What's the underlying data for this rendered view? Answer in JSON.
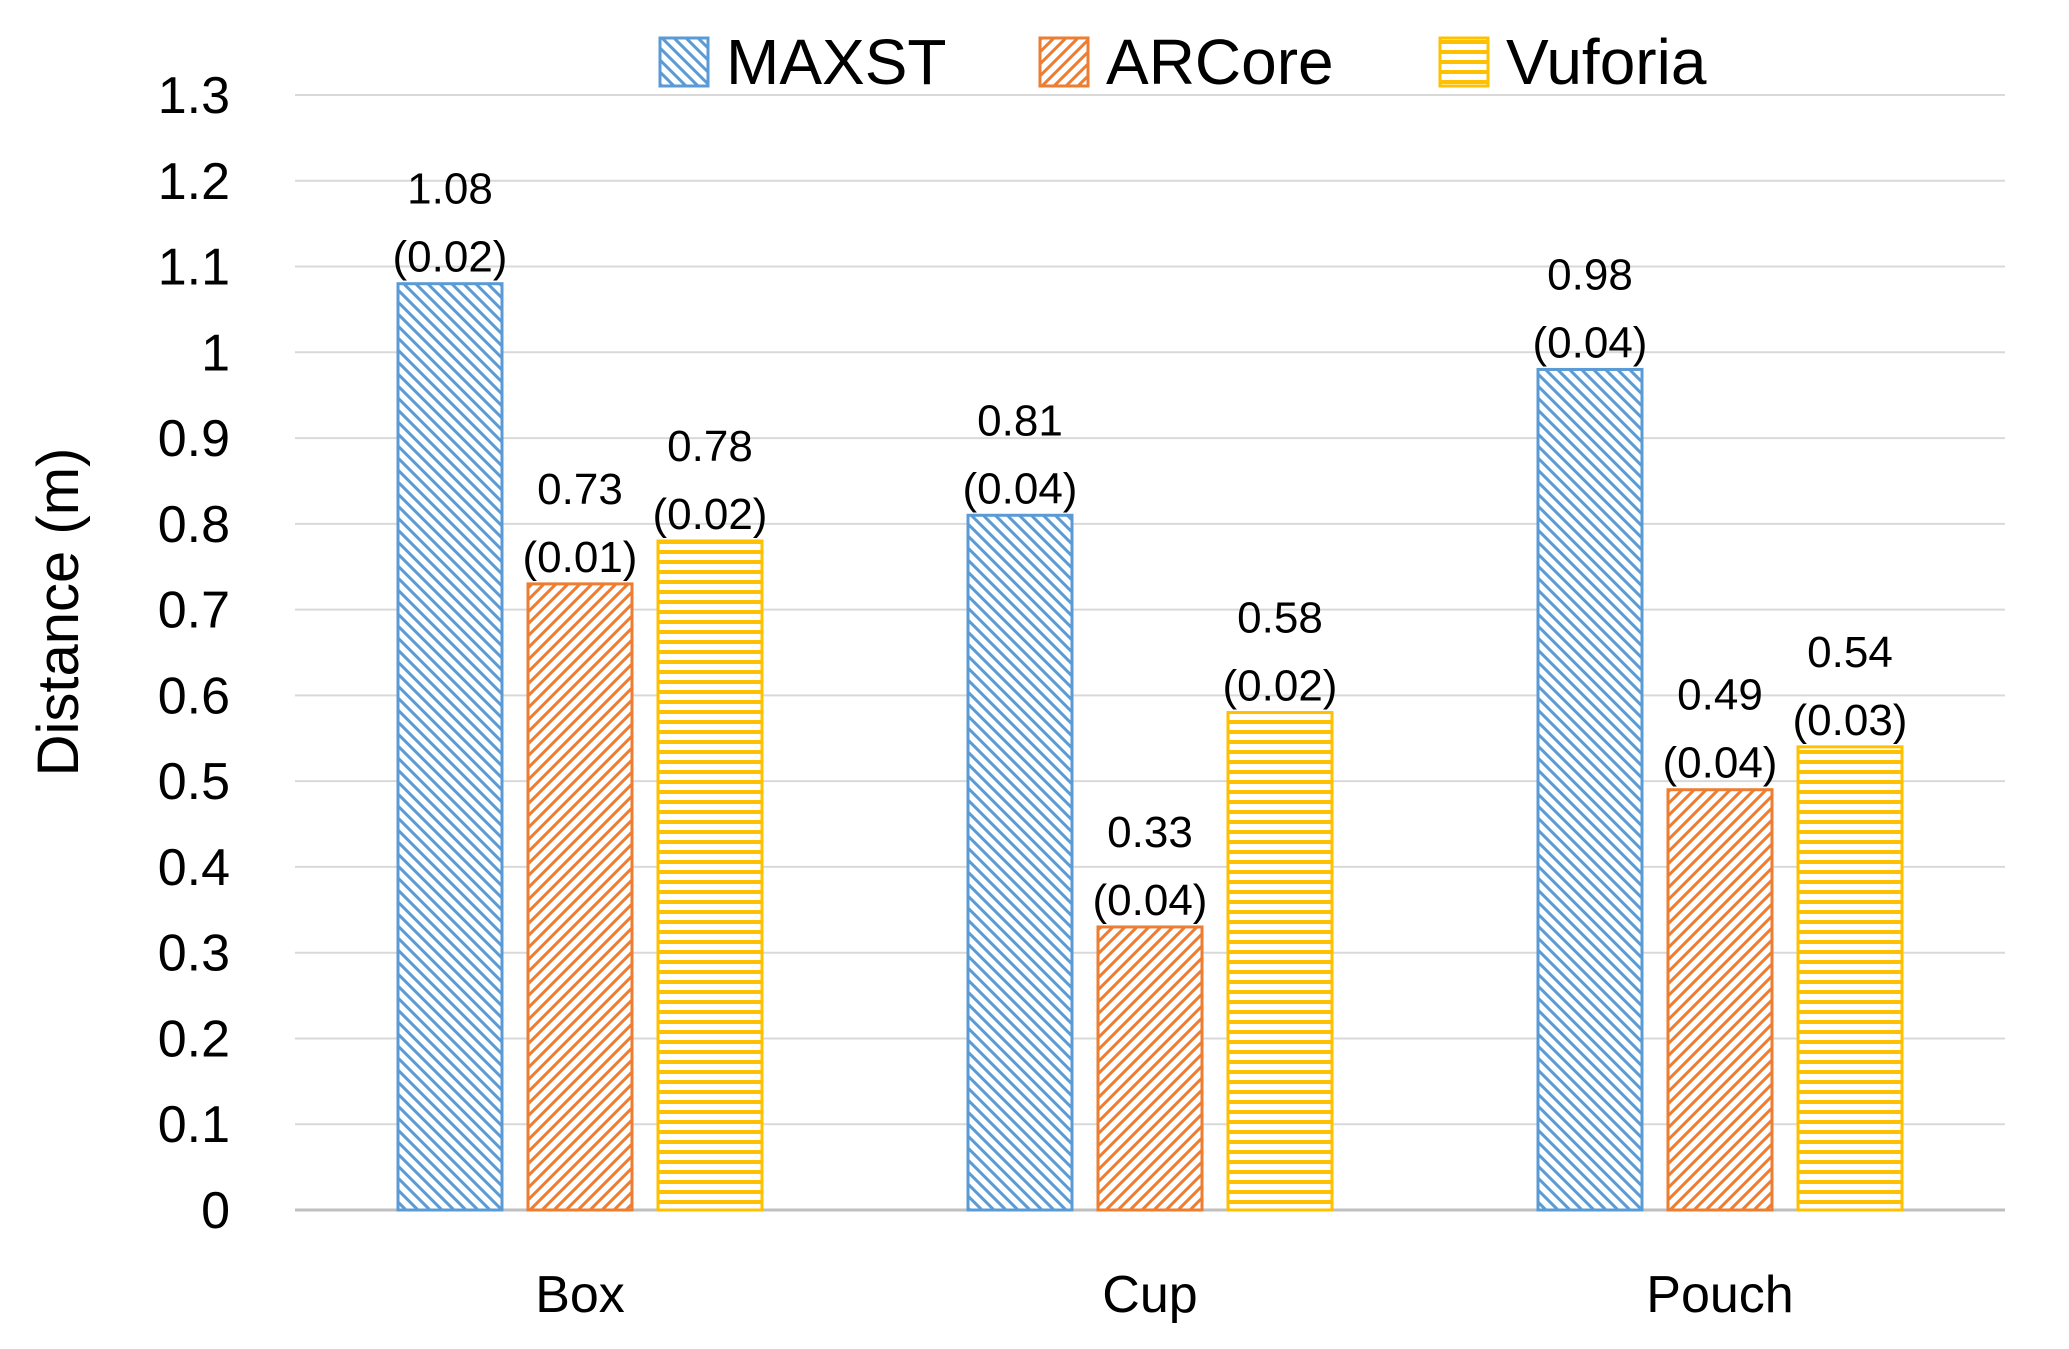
{
  "colors": {
    "MAXST": "#5b9bd5",
    "ARCore": "#ed7d31",
    "Vuforia": "#ffc000",
    "grid": "#d9d9d9"
  },
  "chart_data": {
    "type": "bar",
    "title": "",
    "xlabel": "",
    "ylabel": "Distance (m)",
    "ylim": [
      0,
      1.3
    ],
    "yticks": [
      "0",
      "0.1",
      "0.2",
      "0.3",
      "0.4",
      "0.5",
      "0.6",
      "0.7",
      "0.8",
      "0.9",
      "1",
      "1.1",
      "1.2",
      "1.3"
    ],
    "grid": true,
    "legend_position": "top-center",
    "categories": [
      "Box",
      "Cup",
      "Pouch"
    ],
    "series": [
      {
        "name": "MAXST",
        "pattern": "diagonal-down",
        "values": [
          1.08,
          0.81,
          0.98
        ],
        "std": [
          "(0.02)",
          "(0.04)",
          "(0.04)"
        ],
        "labels": [
          "1.08",
          "0.81",
          "0.98"
        ]
      },
      {
        "name": "ARCore",
        "pattern": "diagonal-up",
        "values": [
          0.73,
          0.33,
          0.49
        ],
        "std": [
          "(0.01)",
          "(0.04)",
          "(0.04)"
        ],
        "labels": [
          "0.73",
          "0.33",
          "0.49"
        ]
      },
      {
        "name": "Vuforia",
        "pattern": "horizontal",
        "values": [
          0.78,
          0.58,
          0.54
        ],
        "std": [
          "(0.02)",
          "(0.02)",
          "(0.03)"
        ],
        "labels": [
          "0.78",
          "0.58",
          "0.54"
        ]
      }
    ]
  }
}
